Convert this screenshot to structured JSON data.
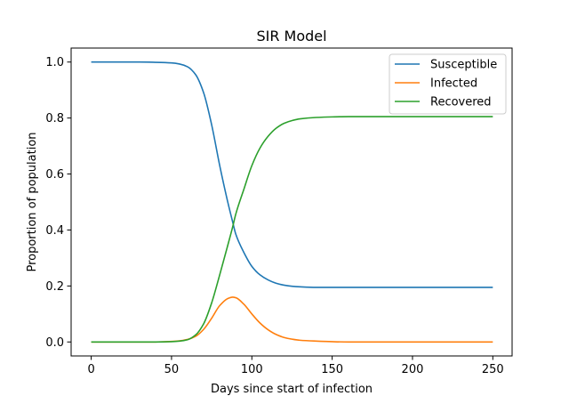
{
  "chart_data": {
    "type": "line",
    "title": "SIR Model",
    "xlabel": "Days since start of infection",
    "ylabel": "Proportion of population",
    "xlim": [
      -12.5,
      262
    ],
    "ylim": [
      -0.05,
      1.05
    ],
    "xticks": [
      0,
      50,
      100,
      150,
      200,
      250
    ],
    "xtick_labels": [
      "0",
      "50",
      "100",
      "150",
      "200",
      "250"
    ],
    "yticks": [
      0.0,
      0.2,
      0.4,
      0.6,
      0.8,
      1.0
    ],
    "ytick_labels": [
      "0.0",
      "0.2",
      "0.4",
      "0.6",
      "0.8",
      "1.0"
    ],
    "grid": false,
    "legend_position": "top-right",
    "x": [
      0,
      10,
      20,
      30,
      40,
      50,
      55,
      60,
      65,
      70,
      75,
      80,
      85,
      88,
      90,
      95,
      100,
      105,
      110,
      115,
      120,
      125,
      130,
      140,
      150,
      160,
      175,
      200,
      225,
      250
    ],
    "series": [
      {
        "name": "Susceptible",
        "color": "#1f77b4",
        "values": [
          1.0,
          1.0,
          1.0,
          1.0,
          0.999,
          0.997,
          0.993,
          0.983,
          0.955,
          0.89,
          0.775,
          0.63,
          0.5,
          0.43,
          0.385,
          0.32,
          0.27,
          0.24,
          0.222,
          0.21,
          0.203,
          0.199,
          0.197,
          0.195,
          0.195,
          0.195,
          0.195,
          0.195,
          0.195,
          0.195
        ]
      },
      {
        "name": "Infected",
        "color": "#ff7f0e",
        "values": [
          0.0,
          0.0,
          0.0,
          0.0,
          0.0,
          0.002,
          0.004,
          0.009,
          0.02,
          0.045,
          0.085,
          0.13,
          0.155,
          0.16,
          0.158,
          0.135,
          0.1,
          0.068,
          0.044,
          0.027,
          0.016,
          0.01,
          0.006,
          0.003,
          0.001,
          0.0,
          0.0,
          0.0,
          0.0,
          0.0
        ]
      },
      {
        "name": "Recovered",
        "color": "#2ca02c",
        "values": [
          0.0,
          0.0,
          0.0,
          0.0,
          0.0,
          0.001,
          0.003,
          0.008,
          0.025,
          0.065,
          0.14,
          0.24,
          0.345,
          0.41,
          0.457,
          0.545,
          0.63,
          0.692,
          0.734,
          0.763,
          0.781,
          0.791,
          0.797,
          0.802,
          0.804,
          0.805,
          0.805,
          0.805,
          0.805,
          0.805
        ]
      }
    ]
  }
}
